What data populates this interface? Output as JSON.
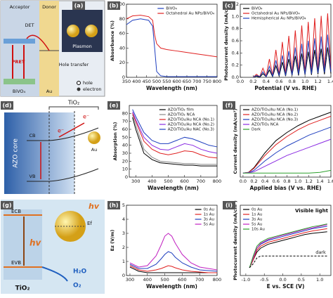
{
  "chart_data": [
    {
      "type": "line",
      "panel": "(b)",
      "xlabel": "Wavelength (nm)",
      "ylabel": "Absorbance (%)",
      "x": [
        350,
        380,
        420,
        460,
        480,
        490,
        500,
        520,
        550,
        600,
        650,
        700,
        750,
        800
      ],
      "xlim": [
        350,
        800
      ],
      "xticks": [
        350,
        400,
        450,
        500,
        550,
        600,
        650,
        700,
        750,
        800
      ],
      "ylim": [
        0,
        100
      ],
      "yticks": [
        0,
        20,
        40,
        60,
        80,
        100
      ],
      "legend": "upper right",
      "series": [
        {
          "name": "BiVO₄",
          "color": "#1f3fbf",
          "values": [
            72,
            78,
            80,
            78,
            70,
            40,
            8,
            2,
            1,
            1,
            1,
            1,
            1,
            1
          ]
        },
        {
          "name": "Octahedral Au NPs/BiVO₄",
          "color": "#e02020",
          "values": [
            80,
            84,
            85,
            83,
            78,
            58,
            46,
            40,
            38,
            36,
            34,
            32,
            30,
            28
          ]
        }
      ]
    },
    {
      "type": "line",
      "panel": "(c)",
      "xlabel": "Potential (V vs. RHE)",
      "ylabel": "Photocurrent density (mA/cm²)",
      "x": [
        0.2,
        0.25,
        0.3,
        0.35,
        0.4,
        0.45,
        0.5,
        0.55,
        0.6,
        0.65,
        0.7,
        0.75,
        0.8,
        0.85,
        0.9,
        0.95,
        1.0,
        1.05,
        1.1,
        1.15,
        1.2,
        1.25,
        1.3,
        1.35,
        1.4
      ],
      "xlim": [
        0,
        1.4
      ],
      "xticks": [
        {
          "value": 0,
          "label": "0.0"
        },
        0.2,
        0.4,
        0.6,
        0.8,
        {
          "value": 1,
          "label": "1.0"
        },
        1.2,
        1.4
      ],
      "ylim": [
        0,
        1.2
      ],
      "yticks": [
        {
          "value": 0,
          "label": "0.0"
        },
        0.2,
        0.4,
        0.6,
        0.8,
        {
          "value": 1,
          "label": "1.0"
        },
        1.2
      ],
      "legend": "upper left",
      "series": [
        {
          "name": "BiVO₄",
          "color": "#000000",
          "values": [
            0,
            0.02,
            0,
            0.06,
            0.01,
            0.12,
            0.01,
            0.19,
            0.02,
            0.25,
            0.02,
            0.3,
            0.03,
            0.35,
            0.03,
            0.39,
            0.04,
            0.42,
            0.04,
            0.45,
            0.05,
            0.47,
            0.05,
            0.49,
            0.06
          ]
        },
        {
          "name": "Octahedral Au NPs/BiVO₄",
          "color": "#e02020",
          "values": [
            0,
            0.05,
            0.01,
            0.15,
            0.02,
            0.3,
            0.03,
            0.45,
            0.04,
            0.58,
            0.05,
            0.68,
            0.06,
            0.77,
            0.07,
            0.85,
            0.08,
            0.91,
            0.09,
            0.97,
            0.1,
            1.01,
            0.12,
            1.05,
            0.14
          ]
        },
        {
          "name": "Hemispherical Au NPs/BiVO₄",
          "color": "#1f3fbf",
          "values": [
            0,
            0.03,
            0.01,
            0.09,
            0.01,
            0.18,
            0.02,
            0.28,
            0.03,
            0.36,
            0.03,
            0.43,
            0.04,
            0.49,
            0.05,
            0.55,
            0.05,
            0.6,
            0.06,
            0.64,
            0.07,
            0.67,
            0.08,
            0.7,
            0.09
          ]
        }
      ]
    },
    {
      "type": "line",
      "panel": "(e)",
      "xlabel": "Wavelength (nm)",
      "ylabel": "Absorption (%)",
      "x": [
        280,
        300,
        350,
        400,
        450,
        500,
        550,
        600,
        650,
        700,
        750,
        800
      ],
      "xlim": [
        260,
        800
      ],
      "xticks": [
        300,
        400,
        500,
        600,
        700,
        800
      ],
      "ylim": [
        0,
        90
      ],
      "yticks": [
        0,
        10,
        20,
        30,
        40,
        50,
        60,
        70,
        80
      ],
      "legend": "upper right",
      "series": [
        {
          "name": "AZO/TiO₂ film",
          "color": "#000000",
          "values": [
            75,
            60,
            30,
            22,
            18,
            17,
            16,
            15,
            15,
            14,
            14,
            14
          ]
        },
        {
          "name": "AZO/TiO₂ NCA",
          "color": "#888888",
          "values": [
            78,
            65,
            35,
            25,
            20,
            19,
            18,
            17,
            17,
            16,
            16,
            16
          ]
        },
        {
          "name": "AZO/TiO₂/Au NCA (No.1)",
          "color": "#e02020",
          "values": [
            80,
            70,
            45,
            35,
            30,
            28,
            30,
            33,
            32,
            28,
            25,
            24
          ]
        },
        {
          "name": "AZO/TiO₂/Au NCA (No.2)",
          "color": "#8a2be2",
          "values": [
            82,
            72,
            50,
            40,
            35,
            34,
            38,
            42,
            40,
            35,
            32,
            30
          ]
        },
        {
          "name": "AZO/TiO₂/Au NAC (No.3)",
          "color": "#1f3fbf",
          "values": [
            85,
            76,
            56,
            46,
            42,
            42,
            46,
            50,
            48,
            44,
            40,
            38
          ]
        }
      ]
    },
    {
      "type": "line",
      "panel": "(f)",
      "xlabel": "Applied bias (V vs. RHE)",
      "ylabel": "Current density (mA/cm²)",
      "x": [
        0,
        0.1,
        0.2,
        0.4,
        0.6,
        0.8,
        1.0,
        1.2,
        1.4,
        1.6
      ],
      "xlim": [
        -0.05,
        1.6
      ],
      "xticks": [
        {
          "value": 0,
          "label": "0.0"
        },
        0.2,
        0.4,
        0.6,
        0.8,
        {
          "value": 1,
          "label": "1.0"
        },
        1.2,
        1.4,
        1.6
      ],
      "ylim": [
        -0.3,
        5
      ],
      "legend": "upper left",
      "series": [
        {
          "name": "AZO/TiO₂/Au NCA (No.1)",
          "color": "#000000",
          "values": [
            0,
            0.05,
            0.4,
            1.5,
            2.4,
            3.0,
            3.5,
            3.9,
            4.2,
            4.5
          ]
        },
        {
          "name": "AZO/TiO₂/Au NCA (No.2)",
          "color": "#e02020",
          "values": [
            0,
            0.05,
            0.35,
            1.3,
            2.1,
            2.7,
            3.2,
            3.6,
            3.9,
            4.2
          ]
        },
        {
          "name": "AZO/TiO₂/Au NCA (No.3)",
          "color": "#1f3fbf",
          "values": [
            0,
            0.03,
            0.2,
            0.9,
            1.5,
            2.0,
            2.4,
            2.8,
            3.1,
            3.4
          ]
        },
        {
          "name": "AZO/TiO₂ NCA",
          "color": "#8a2be2",
          "values": [
            0,
            0.02,
            0.1,
            0.5,
            0.9,
            1.3,
            1.6,
            1.9,
            2.2,
            2.5
          ]
        },
        {
          "name": "Dark",
          "color": "#2ca02c",
          "values": [
            0,
            0,
            0,
            0,
            0,
            0,
            0,
            0,
            0.05,
            0.2
          ]
        }
      ]
    },
    {
      "type": "line",
      "panel": "(h)",
      "xlabel": "Wavelength (nm)",
      "ylabel": "Ez (V/m)",
      "x": [
        300,
        350,
        400,
        450,
        480,
        500,
        520,
        540,
        560,
        600,
        650,
        700,
        750,
        800
      ],
      "xlim": [
        280,
        800
      ],
      "xticks": [
        300,
        400,
        500,
        600,
        700,
        800
      ],
      "ylim": [
        0,
        5
      ],
      "yticks": [
        0,
        1,
        2,
        3,
        4,
        5
      ],
      "legend": "upper right",
      "series": [
        {
          "name": "0s Au",
          "color": "#000000",
          "values": [
            0.6,
            0.3,
            0.2,
            0.2,
            0.2,
            0.2,
            0.2,
            0.2,
            0.2,
            0.2,
            0.2,
            0.2,
            0.2,
            0.2
          ]
        },
        {
          "name": "1s Au",
          "color": "#e02020",
          "values": [
            0.7,
            0.4,
            0.3,
            0.4,
            0.5,
            0.6,
            0.7,
            0.65,
            0.55,
            0.4,
            0.3,
            0.25,
            0.2,
            0.2
          ]
        },
        {
          "name": "3s Au",
          "color": "#1f3fbf",
          "values": [
            0.8,
            0.5,
            0.5,
            0.8,
            1.2,
            1.5,
            1.7,
            1.6,
            1.3,
            0.9,
            0.6,
            0.4,
            0.35,
            0.3
          ]
        },
        {
          "name": "5s Au",
          "color": "#c020c0",
          "values": [
            0.9,
            0.6,
            0.7,
            1.4,
            2.2,
            2.8,
            3.0,
            2.8,
            2.3,
            1.5,
            0.9,
            0.6,
            0.5,
            0.4
          ]
        }
      ]
    },
    {
      "type": "line",
      "panel": "(i)",
      "xlabel": "E vs. SCE (V)",
      "ylabel": "Photocurrent density (mA/cm²)",
      "x": [
        -0.9,
        -0.8,
        -0.7,
        -0.6,
        -0.4,
        -0.2,
        0,
        0.2,
        0.4,
        0.6,
        0.8,
        1.0,
        1.2
      ],
      "xlim": [
        -1.15,
        1.3
      ],
      "xticks": [
        {
          "value": -1,
          "label": "-1.0"
        },
        -0.5,
        {
          "value": 0,
          "label": "0.0"
        },
        0.5,
        {
          "value": 1,
          "label": "1.0"
        }
      ],
      "ylim": [
        -0.5,
        1.3
      ],
      "legend": "upper left",
      "annotations": [
        "Visible light"
      ],
      "series": [
        {
          "name": "0s Au",
          "color": "#000000",
          "values": [
            -0.3,
            -0.1,
            0.1,
            0.2,
            0.3,
            0.35,
            0.4,
            0.45,
            0.5,
            0.55,
            0.58,
            0.6,
            0.62
          ]
        },
        {
          "name": "1s Au",
          "color": "#e02020",
          "values": [
            -0.3,
            -0.1,
            0.15,
            0.25,
            0.35,
            0.4,
            0.45,
            0.5,
            0.55,
            0.6,
            0.64,
            0.67,
            0.7
          ]
        },
        {
          "name": "3s Au",
          "color": "#1f3fbf",
          "values": [
            -0.3,
            -0.05,
            0.2,
            0.3,
            0.4,
            0.45,
            0.5,
            0.55,
            0.6,
            0.65,
            0.7,
            0.73,
            0.76
          ]
        },
        {
          "name": "5s Au",
          "color": "#c020c0",
          "values": [
            -0.3,
            -0.05,
            0.2,
            0.32,
            0.42,
            0.48,
            0.53,
            0.58,
            0.63,
            0.68,
            0.72,
            0.76,
            0.8
          ]
        },
        {
          "name": "10s Au",
          "color": "#2ca02c",
          "values": [
            -0.3,
            0,
            0.25,
            0.35,
            0.45,
            0.5,
            0.55,
            0.6,
            0.65,
            0.7,
            0.75,
            0.78,
            0.82
          ]
        },
        {
          "name": "dark",
          "color": "#000000",
          "dash": true,
          "values": [
            -0.3,
            -0.2,
            -0.05,
            0,
            0,
            0,
            0,
            0,
            0,
            0,
            0,
            0,
            0
          ]
        }
      ]
    }
  ],
  "diagram_a": {
    "panel": "(a)",
    "acceptor": "Acceptor",
    "donor": "Donor",
    "plasmon": "Plasmon",
    "det": "DET",
    "pret": "PRET",
    "hole_transfer": "Hole transfer",
    "semiconductor": "BiVO₄",
    "metal": "Au",
    "hole": "hole",
    "electron": "electron"
  },
  "diagram_d": {
    "panel": "(d)",
    "shell": "TiO₂",
    "core": "AZO core",
    "cb": "CB",
    "vb": "VB",
    "electron_1": "e⁻",
    "electron_2": "e⁻",
    "metal": "Au"
  },
  "diagram_g": {
    "panel": "(g)",
    "ecb": "ECB",
    "evb": "EVB",
    "semiconductor": "TiO₂",
    "hv_1": "hv",
    "hv_2": "hv",
    "ef": "Ef",
    "water": "H₂O",
    "oxygen": "O₂"
  }
}
